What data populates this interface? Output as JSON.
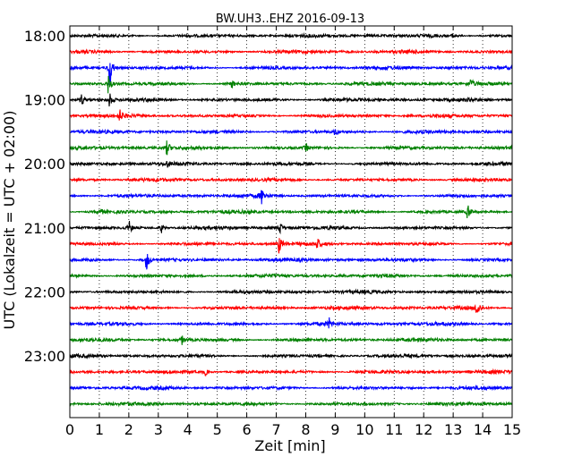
{
  "chart_data": {
    "type": "line",
    "title": "BW.UH3..EHZ 2016-09-13",
    "xlabel": "Zeit  [min]",
    "ylabel": "UTC (Lokalzeit = UTC + 02:00)",
    "xlim": [
      0,
      15
    ],
    "x_ticks": [
      0,
      1,
      2,
      3,
      4,
      5,
      6,
      7,
      8,
      9,
      10,
      11,
      12,
      13,
      14,
      15
    ],
    "y_tick_labels": [
      "18:00",
      "19:00",
      "20:00",
      "21:00",
      "22:00",
      "23:00"
    ],
    "row_interval_min": 15,
    "rows": 24,
    "start_time": "18:00",
    "grid": "vertical dotted at each minute",
    "colors": [
      "#000000",
      "#ff0000",
      "#0000ff",
      "#008000"
    ],
    "events": [
      {
        "row": 0,
        "x": 13.0,
        "amp": 0.35
      },
      {
        "row": 2,
        "x": 1.35,
        "amp": 2.5
      },
      {
        "row": 3,
        "x": 1.3,
        "amp": 1.2
      },
      {
        "row": 3,
        "x": 5.5,
        "amp": 0.5
      },
      {
        "row": 3,
        "x": 13.6,
        "amp": 0.5
      },
      {
        "row": 4,
        "x": 0.4,
        "amp": 0.7
      },
      {
        "row": 4,
        "x": 1.35,
        "amp": 0.8
      },
      {
        "row": 5,
        "x": 1.7,
        "amp": 0.6
      },
      {
        "row": 6,
        "x": 9.0,
        "amp": 0.4
      },
      {
        "row": 7,
        "x": 3.3,
        "amp": 0.9
      },
      {
        "row": 7,
        "x": 8.0,
        "amp": 0.5
      },
      {
        "row": 8,
        "x": 3.3,
        "amp": 0.3
      },
      {
        "row": 10,
        "x": 6.5,
        "amp": 0.9
      },
      {
        "row": 11,
        "x": 1.0,
        "amp": 0.6
      },
      {
        "row": 11,
        "x": 13.5,
        "amp": 0.9
      },
      {
        "row": 12,
        "x": 2.0,
        "amp": 0.9
      },
      {
        "row": 12,
        "x": 3.1,
        "amp": 0.6
      },
      {
        "row": 12,
        "x": 7.1,
        "amp": 0.9
      },
      {
        "row": 13,
        "x": 7.1,
        "amp": 1.1
      },
      {
        "row": 13,
        "x": 8.4,
        "amp": 0.6
      },
      {
        "row": 14,
        "x": 2.6,
        "amp": 1.3
      },
      {
        "row": 17,
        "x": 13.8,
        "amp": 1.2
      },
      {
        "row": 18,
        "x": 8.8,
        "amp": 0.6
      },
      {
        "row": 19,
        "x": 3.8,
        "amp": 0.5
      },
      {
        "row": 21,
        "x": 4.6,
        "amp": 0.4
      }
    ]
  }
}
